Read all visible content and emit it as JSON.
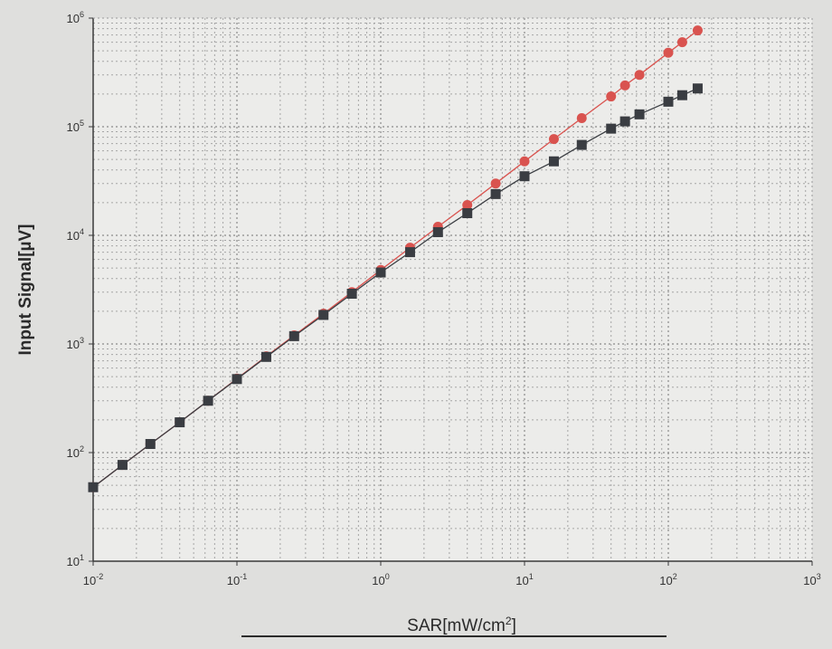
{
  "chart_data": {
    "type": "line",
    "xscale": "log",
    "yscale": "log",
    "xlim": [
      0.01,
      1000
    ],
    "ylim": [
      10,
      1000000
    ],
    "grid": true,
    "legend": "none",
    "xlabel": "SAR[mW/cm²]",
    "ylabel": "Input Signal[µV]",
    "x_ticks": [
      {
        "value": 0.01,
        "base": "10",
        "exp": "-2"
      },
      {
        "value": 0.1,
        "base": "10",
        "exp": "-1"
      },
      {
        "value": 1,
        "base": "10",
        "exp": "0"
      },
      {
        "value": 10,
        "base": "10",
        "exp": "1"
      },
      {
        "value": 100,
        "base": "10",
        "exp": "2"
      },
      {
        "value": 1000,
        "base": "10",
        "exp": "3"
      }
    ],
    "y_ticks": [
      {
        "value": 10,
        "base": "10",
        "exp": "1"
      },
      {
        "value": 100,
        "base": "10",
        "exp": "2"
      },
      {
        "value": 1000,
        "base": "10",
        "exp": "3"
      },
      {
        "value": 10000,
        "base": "10",
        "exp": "4"
      },
      {
        "value": 100000,
        "base": "10",
        "exp": "5"
      },
      {
        "value": 1000000,
        "base": "10",
        "exp": "6"
      }
    ],
    "series": [
      {
        "marker": "circle",
        "color": "#d9534f",
        "x": [
          0.01,
          0.016,
          0.025,
          0.04,
          0.063,
          0.1,
          0.16,
          0.25,
          0.4,
          0.63,
          1,
          1.6,
          2.5,
          4,
          6.3,
          10,
          16,
          25,
          40,
          50,
          63,
          100,
          125,
          160
        ],
        "y": [
          48,
          77,
          120,
          190,
          300,
          480,
          770,
          1200,
          1900,
          3000,
          4800,
          7700,
          12000,
          19000,
          30000,
          48000,
          77000,
          120000,
          190000,
          240000,
          300000,
          480000,
          600000,
          770000
        ]
      },
      {
        "marker": "square",
        "color": "#3a3d42",
        "x": [
          0.01,
          0.016,
          0.025,
          0.04,
          0.063,
          0.1,
          0.16,
          0.25,
          0.4,
          0.63,
          1,
          1.6,
          2.5,
          4,
          6.3,
          10,
          16,
          25,
          40,
          50,
          63,
          100,
          125,
          160
        ],
        "y": [
          48,
          77,
          120,
          190,
          300,
          475,
          760,
          1180,
          1850,
          2900,
          4550,
          7000,
          10700,
          16000,
          24000,
          35000,
          48000,
          68000,
          96000,
          112000,
          130000,
          170000,
          195000,
          225000
        ]
      }
    ]
  }
}
